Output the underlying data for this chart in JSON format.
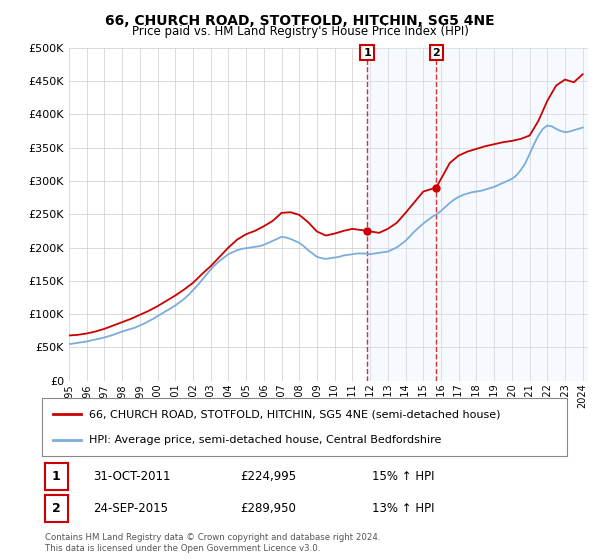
{
  "title": "66, CHURCH ROAD, STOTFOLD, HITCHIN, SG5 4NE",
  "subtitle": "Price paid vs. HM Land Registry's House Price Index (HPI)",
  "ytick_values": [
    0,
    50000,
    100000,
    150000,
    200000,
    250000,
    300000,
    350000,
    400000,
    450000,
    500000
  ],
  "ylim": [
    0,
    500000
  ],
  "legend_line1": "66, CHURCH ROAD, STOTFOLD, HITCHIN, SG5 4NE (semi-detached house)",
  "legend_line2": "HPI: Average price, semi-detached house, Central Bedfordshire",
  "event1_date": "31-OCT-2011",
  "event1_price": "£224,995",
  "event1_pct": "15% ↑ HPI",
  "event2_date": "24-SEP-2015",
  "event2_price": "£289,950",
  "event2_pct": "13% ↑ HPI",
  "footer": "Contains HM Land Registry data © Crown copyright and database right 2024.\nThis data is licensed under the Open Government Licence v3.0.",
  "line_color_red": "#cc0000",
  "line_color_blue": "#7aaddb",
  "shade_color": "#ddeeff",
  "event_x1": 2011.83,
  "event_x2": 2015.73,
  "xlim_left": 1995.0,
  "xlim_right": 2024.3,
  "background_color": "#ffffff",
  "grid_color": "#cccccc",
  "years_hpi": [
    1995.0,
    1995.25,
    1995.5,
    1995.75,
    1996.0,
    1996.25,
    1996.5,
    1996.75,
    1997.0,
    1997.25,
    1997.5,
    1997.75,
    1998.0,
    1998.25,
    1998.5,
    1998.75,
    1999.0,
    1999.25,
    1999.5,
    1999.75,
    2000.0,
    2000.25,
    2000.5,
    2000.75,
    2001.0,
    2001.25,
    2001.5,
    2001.75,
    2002.0,
    2002.25,
    2002.5,
    2002.75,
    2003.0,
    2003.25,
    2003.5,
    2003.75,
    2004.0,
    2004.25,
    2004.5,
    2004.75,
    2005.0,
    2005.25,
    2005.5,
    2005.75,
    2006.0,
    2006.25,
    2006.5,
    2006.75,
    2007.0,
    2007.25,
    2007.5,
    2007.75,
    2008.0,
    2008.25,
    2008.5,
    2008.75,
    2009.0,
    2009.25,
    2009.5,
    2009.75,
    2010.0,
    2010.25,
    2010.5,
    2010.75,
    2011.0,
    2011.25,
    2011.5,
    2011.75,
    2012.0,
    2012.25,
    2012.5,
    2012.75,
    2013.0,
    2013.25,
    2013.5,
    2013.75,
    2014.0,
    2014.25,
    2014.5,
    2014.75,
    2015.0,
    2015.25,
    2015.5,
    2015.75,
    2016.0,
    2016.25,
    2016.5,
    2016.75,
    2017.0,
    2017.25,
    2017.5,
    2017.75,
    2018.0,
    2018.25,
    2018.5,
    2018.75,
    2019.0,
    2019.25,
    2019.5,
    2019.75,
    2020.0,
    2020.25,
    2020.5,
    2020.75,
    2021.0,
    2021.25,
    2021.5,
    2021.75,
    2022.0,
    2022.25,
    2022.5,
    2022.75,
    2023.0,
    2023.25,
    2023.5,
    2023.75,
    2024.0
  ],
  "hpi_values": [
    55000,
    56000,
    57000,
    58000,
    59000,
    60500,
    62000,
    63500,
    65000,
    67000,
    69000,
    71500,
    74000,
    76000,
    78000,
    80000,
    83000,
    86000,
    89500,
    93000,
    97000,
    101000,
    105000,
    109000,
    113000,
    118000,
    123000,
    129000,
    136000,
    143000,
    151000,
    159000,
    167000,
    174000,
    180000,
    185000,
    190000,
    193000,
    196000,
    198000,
    199000,
    200000,
    201000,
    202000,
    204000,
    207000,
    210000,
    213000,
    216000,
    215000,
    213000,
    210000,
    207000,
    202000,
    196000,
    191000,
    186000,
    184000,
    183000,
    184000,
    185000,
    186000,
    188000,
    189000,
    190000,
    191000,
    191000,
    191000,
    190000,
    191000,
    192000,
    193000,
    194000,
    197000,
    200000,
    205000,
    210000,
    217000,
    224000,
    230000,
    236000,
    241000,
    246000,
    250000,
    255000,
    261000,
    267000,
    272000,
    276000,
    279000,
    281000,
    283000,
    284000,
    285000,
    287000,
    289000,
    291000,
    294000,
    297000,
    300000,
    303000,
    308000,
    316000,
    326000,
    340000,
    355000,
    368000,
    378000,
    383000,
    382000,
    378000,
    375000,
    373000,
    374000,
    376000,
    378000,
    380000
  ],
  "years_red": [
    1995.0,
    1995.5,
    1996.0,
    1996.5,
    1997.0,
    1997.5,
    1998.0,
    1998.5,
    1999.0,
    1999.5,
    2000.0,
    2000.5,
    2001.0,
    2001.5,
    2002.0,
    2002.5,
    2003.0,
    2003.5,
    2004.0,
    2004.5,
    2005.0,
    2005.5,
    2006.0,
    2006.5,
    2007.0,
    2007.5,
    2008.0,
    2008.5,
    2009.0,
    2009.5,
    2010.0,
    2010.5,
    2011.0,
    2011.83,
    2012.5,
    2013.0,
    2013.5,
    2014.0,
    2014.5,
    2015.0,
    2015.73,
    2016.5,
    2017.0,
    2017.5,
    2018.0,
    2018.5,
    2019.0,
    2019.5,
    2020.0,
    2020.5,
    2021.0,
    2021.5,
    2022.0,
    2022.5,
    2023.0,
    2023.5,
    2024.0
  ],
  "red_values": [
    68000,
    69000,
    71000,
    74000,
    78000,
    83000,
    88000,
    93000,
    99000,
    105000,
    112000,
    120000,
    128000,
    137000,
    147000,
    160000,
    172000,
    186000,
    200000,
    212000,
    220000,
    225000,
    232000,
    240000,
    252000,
    253000,
    249000,
    238000,
    224000,
    218000,
    221000,
    225000,
    228000,
    224995,
    222000,
    228000,
    237000,
    252000,
    268000,
    284000,
    289950,
    327000,
    338000,
    344000,
    348000,
    352000,
    355000,
    358000,
    360000,
    363000,
    368000,
    390000,
    420000,
    443000,
    452000,
    448000,
    460000
  ]
}
